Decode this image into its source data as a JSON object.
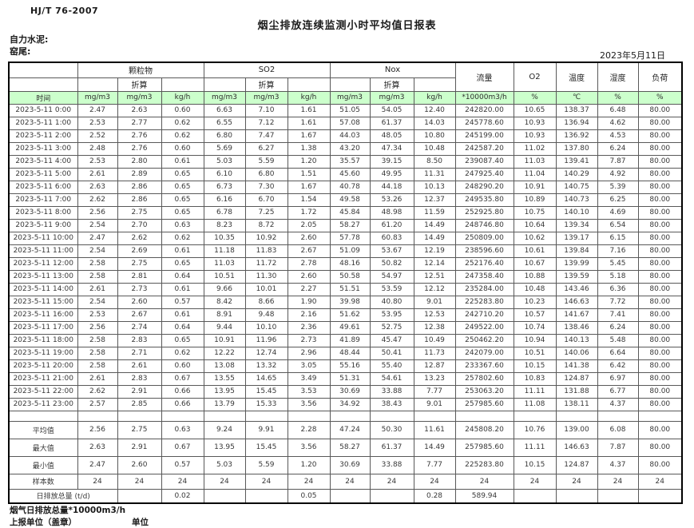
{
  "page": {
    "doc_code": "HJ/T  76-2007",
    "title": "烟尘排放连续监测小时平均值日报表",
    "company_label": "自力水泥:",
    "site_label": "窑尾:",
    "date": "2023年5月11日"
  },
  "colors": {
    "header_green": "#ccffcc",
    "border": "#595959"
  },
  "table": {
    "time_label": "时间",
    "converted_label": "折算",
    "groups": {
      "pm": "颗粒物",
      "so2": "SO2",
      "nox": "Nox",
      "flow": "流量",
      "o2": "O2",
      "temp": "温度",
      "humidity": "湿度",
      "load": "负荷"
    },
    "units": {
      "mgm3": "mg/m3",
      "kgh": "kg/h",
      "flow": "*10000m3/h",
      "percent": "%",
      "celsius": "℃"
    },
    "rows": [
      {
        "time": "2023-5-11 0:00",
        "values": [
          "2.47",
          "2.63",
          "0.60",
          "6.63",
          "7.10",
          "1.61",
          "51.05",
          "54.05",
          "12.40",
          "242820.00",
          "10.65",
          "138.37",
          "6.48",
          "80.00"
        ]
      },
      {
        "time": "2023-5-11 1:00",
        "values": [
          "2.53",
          "2.77",
          "0.62",
          "6.55",
          "7.12",
          "1.61",
          "57.08",
          "61.37",
          "14.03",
          "245778.60",
          "10.93",
          "136.94",
          "4.62",
          "80.00"
        ]
      },
      {
        "time": "2023-5-11 2:00",
        "values": [
          "2.52",
          "2.76",
          "0.62",
          "6.80",
          "7.47",
          "1.67",
          "44.03",
          "48.05",
          "10.80",
          "245199.00",
          "10.93",
          "136.92",
          "4.53",
          "80.00"
        ]
      },
      {
        "time": "2023-5-11 3:00",
        "values": [
          "2.48",
          "2.76",
          "0.60",
          "5.69",
          "6.27",
          "1.38",
          "43.20",
          "47.34",
          "10.48",
          "242587.20",
          "11.02",
          "137.80",
          "6.24",
          "80.00"
        ]
      },
      {
        "time": "2023-5-11 4:00",
        "values": [
          "2.53",
          "2.80",
          "0.61",
          "5.03",
          "5.59",
          "1.20",
          "35.57",
          "39.15",
          "8.50",
          "239087.40",
          "11.03",
          "139.41",
          "7.87",
          "80.00"
        ]
      },
      {
        "time": "2023-5-11 5:00",
        "values": [
          "2.61",
          "2.89",
          "0.65",
          "6.10",
          "6.80",
          "1.51",
          "45.60",
          "49.95",
          "11.31",
          "247925.40",
          "11.04",
          "140.29",
          "4.92",
          "80.00"
        ]
      },
      {
        "time": "2023-5-11 6:00",
        "values": [
          "2.63",
          "2.86",
          "0.65",
          "6.73",
          "7.30",
          "1.67",
          "40.78",
          "44.18",
          "10.13",
          "248290.20",
          "10.91",
          "140.75",
          "5.39",
          "80.00"
        ]
      },
      {
        "time": "2023-5-11 7:00",
        "values": [
          "2.62",
          "2.86",
          "0.65",
          "6.16",
          "6.70",
          "1.54",
          "49.58",
          "53.26",
          "12.37",
          "249535.80",
          "10.89",
          "140.73",
          "6.25",
          "80.00"
        ]
      },
      {
        "time": "2023-5-11 8:00",
        "values": [
          "2.56",
          "2.75",
          "0.65",
          "6.78",
          "7.25",
          "1.72",
          "45.84",
          "48.98",
          "11.59",
          "252925.80",
          "10.75",
          "140.10",
          "4.69",
          "80.00"
        ]
      },
      {
        "time": "2023-5-11 9:00",
        "values": [
          "2.54",
          "2.70",
          "0.63",
          "8.23",
          "8.72",
          "2.05",
          "58.27",
          "61.20",
          "14.49",
          "248746.80",
          "10.64",
          "139.34",
          "6.54",
          "80.00"
        ]
      },
      {
        "time": "2023-5-11 10:00",
        "values": [
          "2.47",
          "2.62",
          "0.62",
          "10.35",
          "10.92",
          "2.60",
          "57.78",
          "60.83",
          "14.49",
          "250809.00",
          "10.62",
          "139.17",
          "6.15",
          "80.00"
        ]
      },
      {
        "time": "2023-5-11 11:00",
        "values": [
          "2.54",
          "2.69",
          "0.61",
          "11.18",
          "11.83",
          "2.67",
          "51.09",
          "53.67",
          "12.19",
          "238596.60",
          "10.61",
          "139.84",
          "7.16",
          "80.00"
        ]
      },
      {
        "time": "2023-5-11 12:00",
        "values": [
          "2.58",
          "2.75",
          "0.65",
          "11.03",
          "11.72",
          "2.78",
          "48.16",
          "50.82",
          "12.14",
          "252176.40",
          "10.67",
          "139.99",
          "5.45",
          "80.00"
        ]
      },
      {
        "time": "2023-5-11 13:00",
        "values": [
          "2.58",
          "2.81",
          "0.64",
          "10.51",
          "11.30",
          "2.60",
          "50.58",
          "54.97",
          "12.51",
          "247358.40",
          "10.88",
          "139.59",
          "5.18",
          "80.00"
        ]
      },
      {
        "time": "2023-5-11 14:00",
        "values": [
          "2.61",
          "2.73",
          "0.61",
          "9.66",
          "10.01",
          "2.27",
          "51.51",
          "53.59",
          "12.12",
          "235284.00",
          "10.48",
          "143.46",
          "6.36",
          "80.00"
        ]
      },
      {
        "time": "2023-5-11 15:00",
        "values": [
          "2.54",
          "2.60",
          "0.57",
          "8.42",
          "8.66",
          "1.90",
          "39.98",
          "40.80",
          "9.01",
          "225283.80",
          "10.23",
          "146.63",
          "7.72",
          "80.00"
        ]
      },
      {
        "time": "2023-5-11 16:00",
        "values": [
          "2.53",
          "2.67",
          "0.61",
          "8.91",
          "9.48",
          "2.16",
          "51.62",
          "53.95",
          "12.53",
          "242710.20",
          "10.57",
          "141.67",
          "7.41",
          "80.00"
        ]
      },
      {
        "time": "2023-5-11 17:00",
        "values": [
          "2.56",
          "2.74",
          "0.64",
          "9.44",
          "10.10",
          "2.36",
          "49.61",
          "52.75",
          "12.38",
          "249522.00",
          "10.74",
          "138.46",
          "6.24",
          "80.00"
        ]
      },
      {
        "time": "2023-5-11 18:00",
        "values": [
          "2.58",
          "2.83",
          "0.65",
          "10.91",
          "11.96",
          "2.73",
          "41.89",
          "45.47",
          "10.49",
          "250462.20",
          "10.94",
          "140.13",
          "5.48",
          "80.00"
        ]
      },
      {
        "time": "2023-5-11 19:00",
        "values": [
          "2.58",
          "2.71",
          "0.62",
          "12.22",
          "12.74",
          "2.96",
          "48.44",
          "50.41",
          "11.73",
          "242079.00",
          "10.51",
          "140.06",
          "6.64",
          "80.00"
        ]
      },
      {
        "time": "2023-5-11 20:00",
        "values": [
          "2.58",
          "2.61",
          "0.60",
          "13.08",
          "13.32",
          "3.05",
          "55.16",
          "55.40",
          "12.87",
          "233367.60",
          "10.15",
          "141.38",
          "6.42",
          "80.00"
        ]
      },
      {
        "time": "2023-5-11 21:00",
        "values": [
          "2.61",
          "2.83",
          "0.67",
          "13.55",
          "14.65",
          "3.49",
          "51.31",
          "54.61",
          "13.23",
          "257802.60",
          "10.83",
          "124.87",
          "6.97",
          "80.00"
        ]
      },
      {
        "time": "2023-5-11 22:00",
        "values": [
          "2.62",
          "2.91",
          "0.66",
          "13.95",
          "15.45",
          "3.53",
          "30.69",
          "33.88",
          "7.77",
          "253063.20",
          "11.11",
          "131.88",
          "6.77",
          "80.00"
        ]
      },
      {
        "time": "2023-5-11 23:00",
        "values": [
          "2.57",
          "2.85",
          "0.66",
          "13.79",
          "15.33",
          "3.56",
          "34.92",
          "38.43",
          "9.01",
          "257985.60",
          "11.08",
          "138.11",
          "4.37",
          "80.00"
        ]
      }
    ],
    "summary": [
      {
        "label": "平均值",
        "values": [
          "2.56",
          "2.75",
          "0.63",
          "9.24",
          "9.91",
          "2.28",
          "47.24",
          "50.30",
          "11.61",
          "245808.20",
          "10.76",
          "139.00",
          "6.08",
          "80.00"
        ]
      },
      {
        "label": "最大值",
        "values": [
          "2.63",
          "2.91",
          "0.67",
          "13.95",
          "15.45",
          "3.56",
          "58.27",
          "61.37",
          "14.49",
          "257985.60",
          "11.11",
          "146.63",
          "7.87",
          "80.00"
        ]
      },
      {
        "label": "最小值",
        "values": [
          "2.47",
          "2.60",
          "0.57",
          "5.03",
          "5.59",
          "1.20",
          "30.69",
          "33.88",
          "7.77",
          "225283.80",
          "10.15",
          "124.87",
          "4.37",
          "80.00"
        ]
      },
      {
        "label": "样本数",
        "values": [
          "24",
          "24",
          "24",
          "24",
          "24",
          "24",
          "24",
          "24",
          "24",
          "24",
          "24",
          "24",
          "24",
          "24"
        ]
      }
    ],
    "daily_total": {
      "label": "日排放总量 (t/d)",
      "values": [
        "",
        "0.02",
        "",
        "",
        "0.05",
        "",
        "",
        "0.28",
        "589.94",
        "",
        "",
        "",
        ""
      ]
    }
  },
  "footer": {
    "flue_total": "烟气日排放总量*10000m3/h",
    "report_unit": "上报单位（盖章）",
    "unit": "单位"
  }
}
